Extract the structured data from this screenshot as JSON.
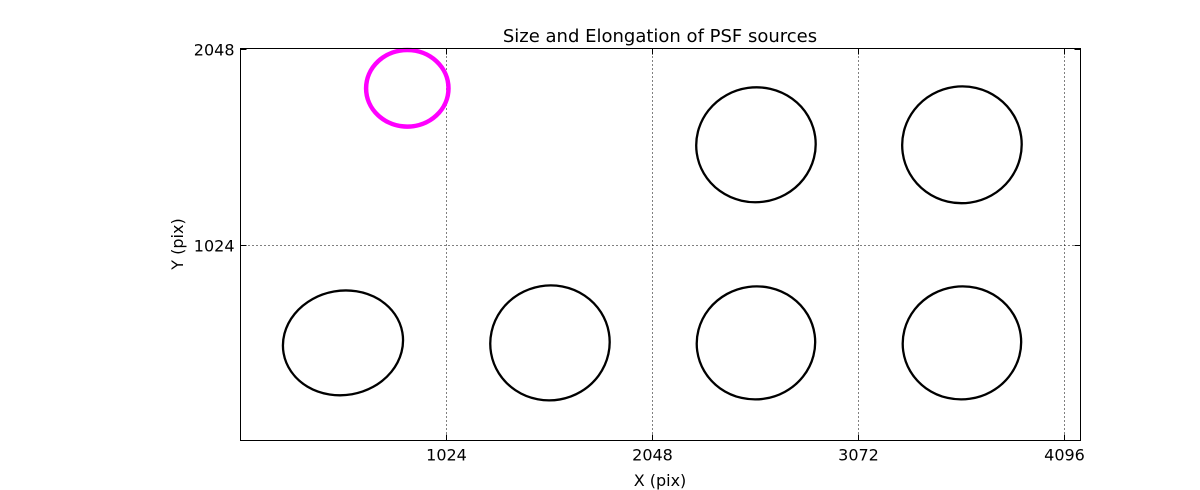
{
  "chart_data": {
    "type": "scatter",
    "title": "Size and Elongation of PSF sources",
    "xlabel": "X (pix)",
    "ylabel": "Y (pix)",
    "xlim": [
      0,
      4180
    ],
    "ylim": [
      0,
      2048
    ],
    "xticks": [
      1024,
      2048,
      3072,
      4096
    ],
    "yticks": [
      1024,
      2048
    ],
    "grid": true,
    "reference_ellipse": {
      "x": 830,
      "y": 1840,
      "width": 410,
      "height": 400,
      "angle": 0,
      "color": "#ff00ff"
    },
    "ellipses": [
      {
        "x": 510,
        "y": 510,
        "width": 600,
        "height": 545,
        "angle": -10
      },
      {
        "x": 1540,
        "y": 510,
        "width": 595,
        "height": 600,
        "angle": -10
      },
      {
        "x": 2565,
        "y": 510,
        "width": 590,
        "height": 590,
        "angle": -8
      },
      {
        "x": 3590,
        "y": 510,
        "width": 590,
        "height": 590,
        "angle": -8
      },
      {
        "x": 2565,
        "y": 1545,
        "width": 595,
        "height": 600,
        "angle": -8
      },
      {
        "x": 3590,
        "y": 1545,
        "width": 595,
        "height": 610,
        "angle": -8
      }
    ],
    "colors": {
      "ellipse": "#000000",
      "grid": "#000000"
    }
  }
}
